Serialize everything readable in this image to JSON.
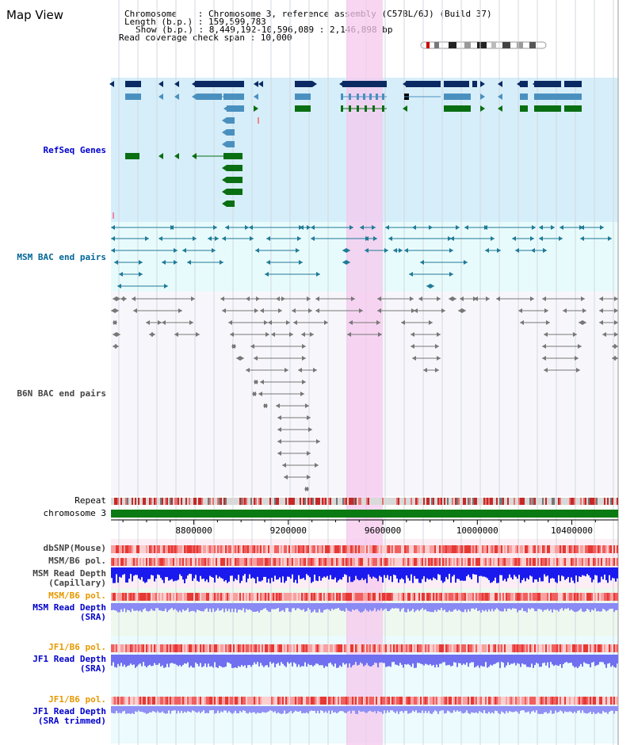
{
  "header": {
    "title": "Map View",
    "chromosome_line": "Chromosome    : Chromosome 3, reference assembly (C57BL/6J) (Build 37)",
    "length_line": "Length (b.p.) : 159,599,783",
    "show_line": "Show (b.p.) : 8,449,192-10,596,089 : 2,146,898 bp",
    "coverage_line": "Read coverage check span : 10,000"
  },
  "tracks": {
    "refseq": "RefSeq Genes",
    "msm_bac": "MSM BAC end pairs",
    "b6n_bac": "B6N BAC end pairs",
    "repeat": "Repeat",
    "chromosome": "chromosome 3",
    "dbsnp": "dbSNP(Mouse)",
    "msm_b6_pol_1": "MSM/B6 pol.",
    "msm_read_depth_cap_1": "MSM Read Depth",
    "msm_read_depth_cap_2": "(Capillary)",
    "msm_b6_pol_2": "MSM/B6 pol.",
    "msm_read_depth_sra_1": "MSM Read Depth",
    "msm_read_depth_sra_2": "(SRA)",
    "jf1_b6_pol_1": "JF1/B6 pol.",
    "jf1_read_depth_sra_1": "JF1 Read Depth",
    "jf1_read_depth_sra_2": "(SRA)",
    "jf1_b6_pol_2": "JF1/B6 pol.",
    "jf1_read_depth_trim_1": "JF1 Read Depth",
    "jf1_read_depth_trim_2": "(SRA trimmed)"
  },
  "axis": {
    "ticks": [
      "8800000",
      "9200000",
      "9600000",
      "10000000",
      "10400000"
    ]
  },
  "colors": {
    "label_blue": "#0000cc",
    "label_teal": "#006699",
    "label_gray": "#444444",
    "label_orange": "#e69900",
    "highlight": "#f5c8ee",
    "refseq_bg": "#d6eef9",
    "msm_bg": "#e8fbfc",
    "gene_navy": "#0b2a63",
    "gene_steel": "#4a90bf",
    "gene_green": "#0a6e12"
  }
}
